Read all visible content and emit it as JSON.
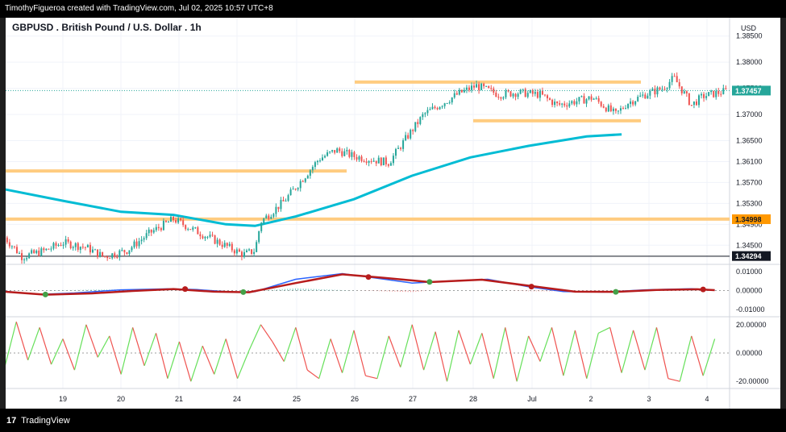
{
  "header": {
    "attribution": "TimothyFigueroa created with TradingView.com, Jul 02, 2025 10:57 UTC+8"
  },
  "footer": {
    "brand": "TradingView",
    "logo_glyph": "17"
  },
  "colors": {
    "up": "#26a69a",
    "down": "#ef5350",
    "ma": "#00bcd4",
    "level_fill": "#ffcc80",
    "macd_line": "#2962ff",
    "signal": "#b71c1c",
    "signal_up": "#43a047",
    "rsi_up": "#66e05a",
    "rsi_down": "#ef5350",
    "price_tag": "#26a69a"
  },
  "chart_data": [
    {
      "type": "candlestick",
      "title": "GBPUSD . British Pound / U.S. Dollar . 1h",
      "currency": "USD",
      "x_ticks": [
        "19",
        "20",
        "21",
        "24",
        "25",
        "26",
        "27",
        "28",
        "Jul",
        "2",
        "3",
        "4"
      ],
      "y_ticks": [
        "1.38500",
        "1.38000",
        "1.37500",
        "1.37000",
        "1.36500",
        "1.36100",
        "1.35700",
        "1.35300",
        "1.34900",
        "1.34500"
      ],
      "ylim": [
        1.3415,
        1.3885
      ],
      "last_price": "1.37457",
      "price_tags": [
        "1.37457",
        "1.34998",
        "1.34294"
      ],
      "levels": [
        {
          "name": "resistance",
          "value": 1.3762,
          "from": "26",
          "to": "3"
        },
        {
          "name": "support-upper",
          "value": 1.3688,
          "from": "28",
          "to": "3"
        },
        {
          "name": "support-mid",
          "value": 1.3592,
          "from": "18",
          "to": "26"
        },
        {
          "name": "level-134998",
          "value": 1.35,
          "from": "18",
          "to": "end"
        },
        {
          "name": "level-134294",
          "value": 1.3429,
          "from": "18",
          "to": "end"
        }
      ],
      "moving_average_path": [
        [
          18.0,
          1.3557
        ],
        [
          19.0,
          1.3535
        ],
        [
          20.0,
          1.3514
        ],
        [
          20.9,
          1.3508
        ],
        [
          21.3,
          1.35
        ],
        [
          21.8,
          1.349
        ],
        [
          22.3,
          1.3487
        ],
        [
          23.0,
          1.3505
        ],
        [
          24.0,
          1.3538
        ],
        [
          25.0,
          1.3583
        ],
        [
          26.0,
          1.3618
        ],
        [
          27.0,
          1.364
        ],
        [
          28.0,
          1.3658
        ],
        [
          28.6,
          1.3662
        ]
      ],
      "price_path": [
        [
          18.0,
          1.3465
        ],
        [
          18.3,
          1.3428
        ],
        [
          18.7,
          1.344
        ],
        [
          19.0,
          1.3455
        ],
        [
          19.4,
          1.3446
        ],
        [
          19.7,
          1.3428
        ],
        [
          20.1,
          1.344
        ],
        [
          20.5,
          1.3474
        ],
        [
          20.9,
          1.35
        ],
        [
          21.2,
          1.3482
        ],
        [
          21.6,
          1.346
        ],
        [
          22.1,
          1.3432
        ],
        [
          22.3,
          1.344
        ],
        [
          22.4,
          1.3495
        ],
        [
          22.8,
          1.3534
        ],
        [
          23.2,
          1.3588
        ],
        [
          23.4,
          1.3615
        ],
        [
          23.7,
          1.3632
        ],
        [
          24.0,
          1.362
        ],
        [
          24.4,
          1.3612
        ],
        [
          24.6,
          1.3608
        ],
        [
          24.9,
          1.3655
        ],
        [
          25.2,
          1.37
        ],
        [
          25.5,
          1.372
        ],
        [
          25.8,
          1.374
        ],
        [
          26.1,
          1.3755
        ],
        [
          26.5,
          1.3738
        ],
        [
          26.8,
          1.3742
        ],
        [
          27.2,
          1.3738
        ],
        [
          27.5,
          1.3718
        ],
        [
          27.8,
          1.3725
        ],
        [
          28.1,
          1.3732
        ],
        [
          28.5,
          1.37
        ],
        [
          28.7,
          1.3722
        ],
        [
          29.0,
          1.3738
        ],
        [
          29.3,
          1.375
        ],
        [
          29.5,
          1.377
        ],
        [
          29.7,
          1.3736
        ],
        [
          29.8,
          1.3718
        ],
        [
          30.0,
          1.3735
        ],
        [
          30.2,
          1.374
        ],
        [
          30.4,
          1.3745
        ]
      ]
    },
    {
      "type": "line",
      "title": "",
      "y_ticks": [
        "0.01000",
        "0.00000",
        "-0.01000"
      ],
      "ylim": [
        -0.0135,
        0.0135
      ],
      "series": [
        {
          "values_path": [
            [
              18.0,
              -0.0004
            ],
            [
              18.6,
              -0.002
            ],
            [
              19.2,
              -0.0013
            ],
            [
              20.0,
              0.0004
            ],
            [
              20.8,
              0.0009
            ],
            [
              21.3,
              0.0005
            ],
            [
              21.9,
              -0.0008
            ],
            [
              22.3,
              -0.0006
            ],
            [
              23.0,
              0.006
            ],
            [
              23.8,
              0.009
            ],
            [
              24.3,
              0.007
            ],
            [
              25.0,
              0.004
            ],
            [
              25.6,
              0.005
            ],
            [
              26.3,
              0.006
            ],
            [
              27.0,
              0.002
            ],
            [
              27.6,
              -0.0005
            ],
            [
              28.3,
              -0.0008
            ],
            [
              29.0,
              0.0004
            ],
            [
              29.8,
              0.001
            ],
            [
              30.2,
              0.0001
            ]
          ]
        },
        {
          "values_path": [
            [
              18.0,
              -0.0006
            ],
            [
              18.7,
              -0.0022
            ],
            [
              19.5,
              -0.0015
            ],
            [
              20.2,
              -0.0002
            ],
            [
              20.9,
              0.0008
            ],
            [
              21.6,
              -0.0006
            ],
            [
              22.2,
              -0.0009
            ],
            [
              23.0,
              0.004
            ],
            [
              23.8,
              0.0086
            ],
            [
              24.5,
              0.0068
            ],
            [
              25.3,
              0.0045
            ],
            [
              26.2,
              0.0058
            ],
            [
              27.1,
              0.0022
            ],
            [
              27.8,
              -0.0006
            ],
            [
              28.5,
              -0.0007
            ],
            [
              29.2,
              0.0003
            ],
            [
              29.9,
              0.0007
            ],
            [
              30.2,
              0.0002
            ]
          ]
        }
      ]
    },
    {
      "type": "line",
      "title": "",
      "y_ticks": [
        "20.00000",
        "0.00000",
        "-20.00000"
      ],
      "ylim": [
        -25,
        25
      ],
      "values_path": [
        [
          18.0,
          -10
        ],
        [
          18.2,
          22
        ],
        [
          18.4,
          -5
        ],
        [
          18.6,
          18
        ],
        [
          18.8,
          -8
        ],
        [
          19.0,
          10
        ],
        [
          19.2,
          -12
        ],
        [
          19.4,
          20
        ],
        [
          19.6,
          -3
        ],
        [
          19.8,
          12
        ],
        [
          20.0,
          -15
        ],
        [
          20.2,
          18
        ],
        [
          20.4,
          -9
        ],
        [
          20.6,
          14
        ],
        [
          20.8,
          -18
        ],
        [
          21.0,
          8
        ],
        [
          21.2,
          -20
        ],
        [
          21.4,
          5
        ],
        [
          21.6,
          -15
        ],
        [
          21.8,
          10
        ],
        [
          22.0,
          -18
        ],
        [
          22.2,
          2
        ],
        [
          22.4,
          20
        ],
        [
          22.6,
          8
        ],
        [
          22.8,
          -6
        ],
        [
          23.0,
          18
        ],
        [
          23.2,
          -12
        ],
        [
          23.4,
          -18
        ],
        [
          23.6,
          10
        ],
        [
          23.8,
          -14
        ],
        [
          24.0,
          16
        ],
        [
          24.2,
          -16
        ],
        [
          24.4,
          -18
        ],
        [
          24.6,
          12
        ],
        [
          24.8,
          -10
        ],
        [
          25.0,
          20
        ],
        [
          25.2,
          -12
        ],
        [
          25.4,
          15
        ],
        [
          25.6,
          -20
        ],
        [
          25.8,
          16
        ],
        [
          26.0,
          -8
        ],
        [
          26.2,
          14
        ],
        [
          26.4,
          -18
        ],
        [
          26.6,
          18
        ],
        [
          26.8,
          -20
        ],
        [
          27.0,
          12
        ],
        [
          27.2,
          -6
        ],
        [
          27.4,
          18
        ],
        [
          27.6,
          -16
        ],
        [
          27.8,
          16
        ],
        [
          28.0,
          -18
        ],
        [
          28.2,
          14
        ],
        [
          28.4,
          18
        ],
        [
          28.6,
          -14
        ],
        [
          28.8,
          16
        ],
        [
          29.0,
          -12
        ],
        [
          29.2,
          18
        ],
        [
          29.4,
          -18
        ],
        [
          29.6,
          -20
        ],
        [
          29.8,
          12
        ],
        [
          30.0,
          -16
        ],
        [
          30.2,
          10
        ]
      ]
    }
  ]
}
